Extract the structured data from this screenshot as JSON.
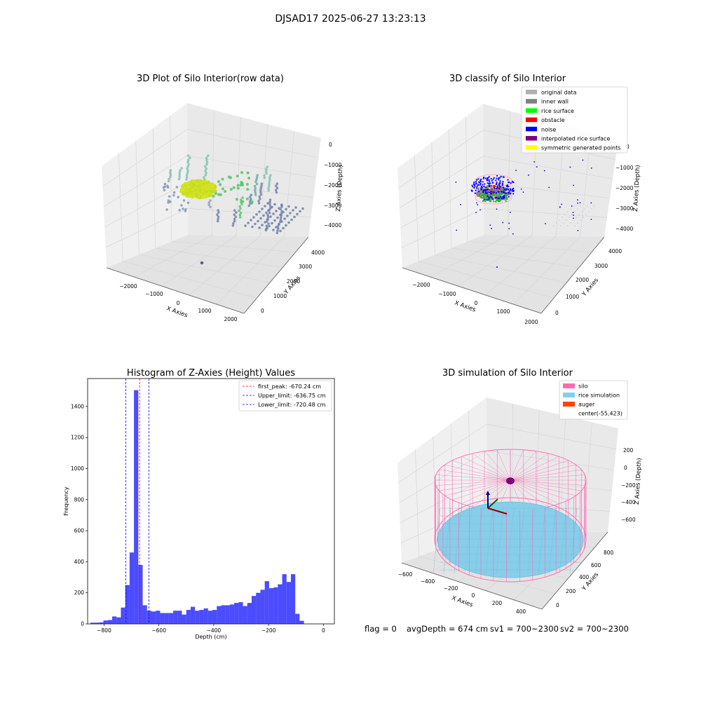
{
  "suptitle": "DJSAD17 2025-06-27 13:23:13",
  "colors": {
    "points_mid": "#6aa8a0",
    "points_dark": "#6b7fa8",
    "points_green": "#55c26a",
    "points_yellow": "#d4e21e",
    "hist_bar": "#0000ff",
    "silo": "#ff69b4",
    "rice": "#87ceeb",
    "auger": "#ff4500",
    "grid": "#d6d6d6",
    "pane": "#f2f2f2"
  },
  "plot3d_raw": {
    "title": "3D Plot of Silo Interior(row data)",
    "xlabel": "X Axies",
    "ylabel": "Y Axies",
    "zlabel": "Z Axies (Depth)",
    "xticks": [
      "−2000",
      "−1000",
      "0",
      "1000",
      "2000"
    ],
    "yticks": [
      "0",
      "1000",
      "2000",
      "3000",
      "4000"
    ],
    "zticks": [
      "0",
      "−1000",
      "−2000",
      "−3000",
      "−4000"
    ]
  },
  "plot3d_classify": {
    "title": "3D classify of Silo Interior",
    "xlabel": "X Axies",
    "ylabel": "Y Axies",
    "zlabel": "Z Axies (Depth)",
    "xticks": [
      "−2000",
      "−1000",
      "0",
      "1000",
      "2000"
    ],
    "yticks": [
      "0",
      "1000",
      "2000",
      "3000",
      "4000"
    ],
    "zticks": [
      "0",
      "−1000",
      "−2000",
      "−3000",
      "−4000"
    ],
    "legend": [
      {
        "label": "original data",
        "color": "#b0b0b0"
      },
      {
        "label": "inner wall",
        "color": "#808080"
      },
      {
        "label": "rice surface",
        "color": "#00ff00"
      },
      {
        "label": "obstacle",
        "color": "#ff0000"
      },
      {
        "label": "noise",
        "color": "#0000ff"
      },
      {
        "label": "interpolated rice surface",
        "color": "#800080"
      },
      {
        "label": "symmetric generated points",
        "color": "#ffff00"
      }
    ]
  },
  "chart_data": [
    {
      "type": "bar",
      "title": "Histogram of Z-Axies (Height) Values",
      "xlabel": "Depth (cm)",
      "ylabel": "Frequency",
      "xlim": [
        -860,
        40
      ],
      "ylim": [
        0,
        1580
      ],
      "xticks": [
        -800,
        -600,
        -400,
        -200,
        0
      ],
      "yticks": [
        0,
        200,
        400,
        600,
        800,
        1000,
        1200,
        1400
      ],
      "bin_width": 15.9,
      "bin_start": -850,
      "values": [
        8,
        8,
        10,
        22,
        25,
        48,
        42,
        105,
        250,
        460,
        1505,
        380,
        120,
        85,
        80,
        85,
        70,
        70,
        70,
        85,
        85,
        60,
        90,
        110,
        85,
        90,
        100,
        85,
        90,
        115,
        120,
        120,
        125,
        135,
        140,
        115,
        135,
        180,
        200,
        220,
        275,
        230,
        235,
        255,
        320,
        270,
        320,
        65,
        20
      ],
      "reference_lines": [
        {
          "label": "first_peak: -670.24 cm",
          "value": -670.24,
          "color": "#ff0000"
        },
        {
          "label": "Upper_limit: -636.75 cm",
          "value": -636.75,
          "color": "#0000ff"
        },
        {
          "label": "Lower_limit: -720.48 cm",
          "value": -720.48,
          "color": "#0000ff"
        }
      ],
      "legend_position": "upper-right"
    }
  ],
  "plot3d_sim": {
    "title": "3D simulation of Silo Interior",
    "xlabel": "X Axies",
    "ylabel": "Y Axies",
    "zlabel": "Z Axies (Depth)",
    "xticks": [
      "−600",
      "−400",
      "−200",
      "0",
      "200",
      "400"
    ],
    "yticks": [
      "0",
      "200",
      "400",
      "600",
      "800"
    ],
    "zticks": [
      "200",
      "0",
      "−200",
      "−400",
      "−600"
    ],
    "legend": [
      {
        "label": "silo",
        "color": "#ff69b4"
      },
      {
        "label": "rice simulation",
        "color": "#87ceeb"
      },
      {
        "label": "auger",
        "color": "#ff4500"
      },
      {
        "label": "center(-55,423)",
        "color": "none"
      }
    ]
  },
  "status": {
    "flag": "flag = 0",
    "avg": "avgDepth = 674 cm",
    "sv1": "sv1 = 700~2300",
    "sv2": "sv2 = 700~2300"
  }
}
